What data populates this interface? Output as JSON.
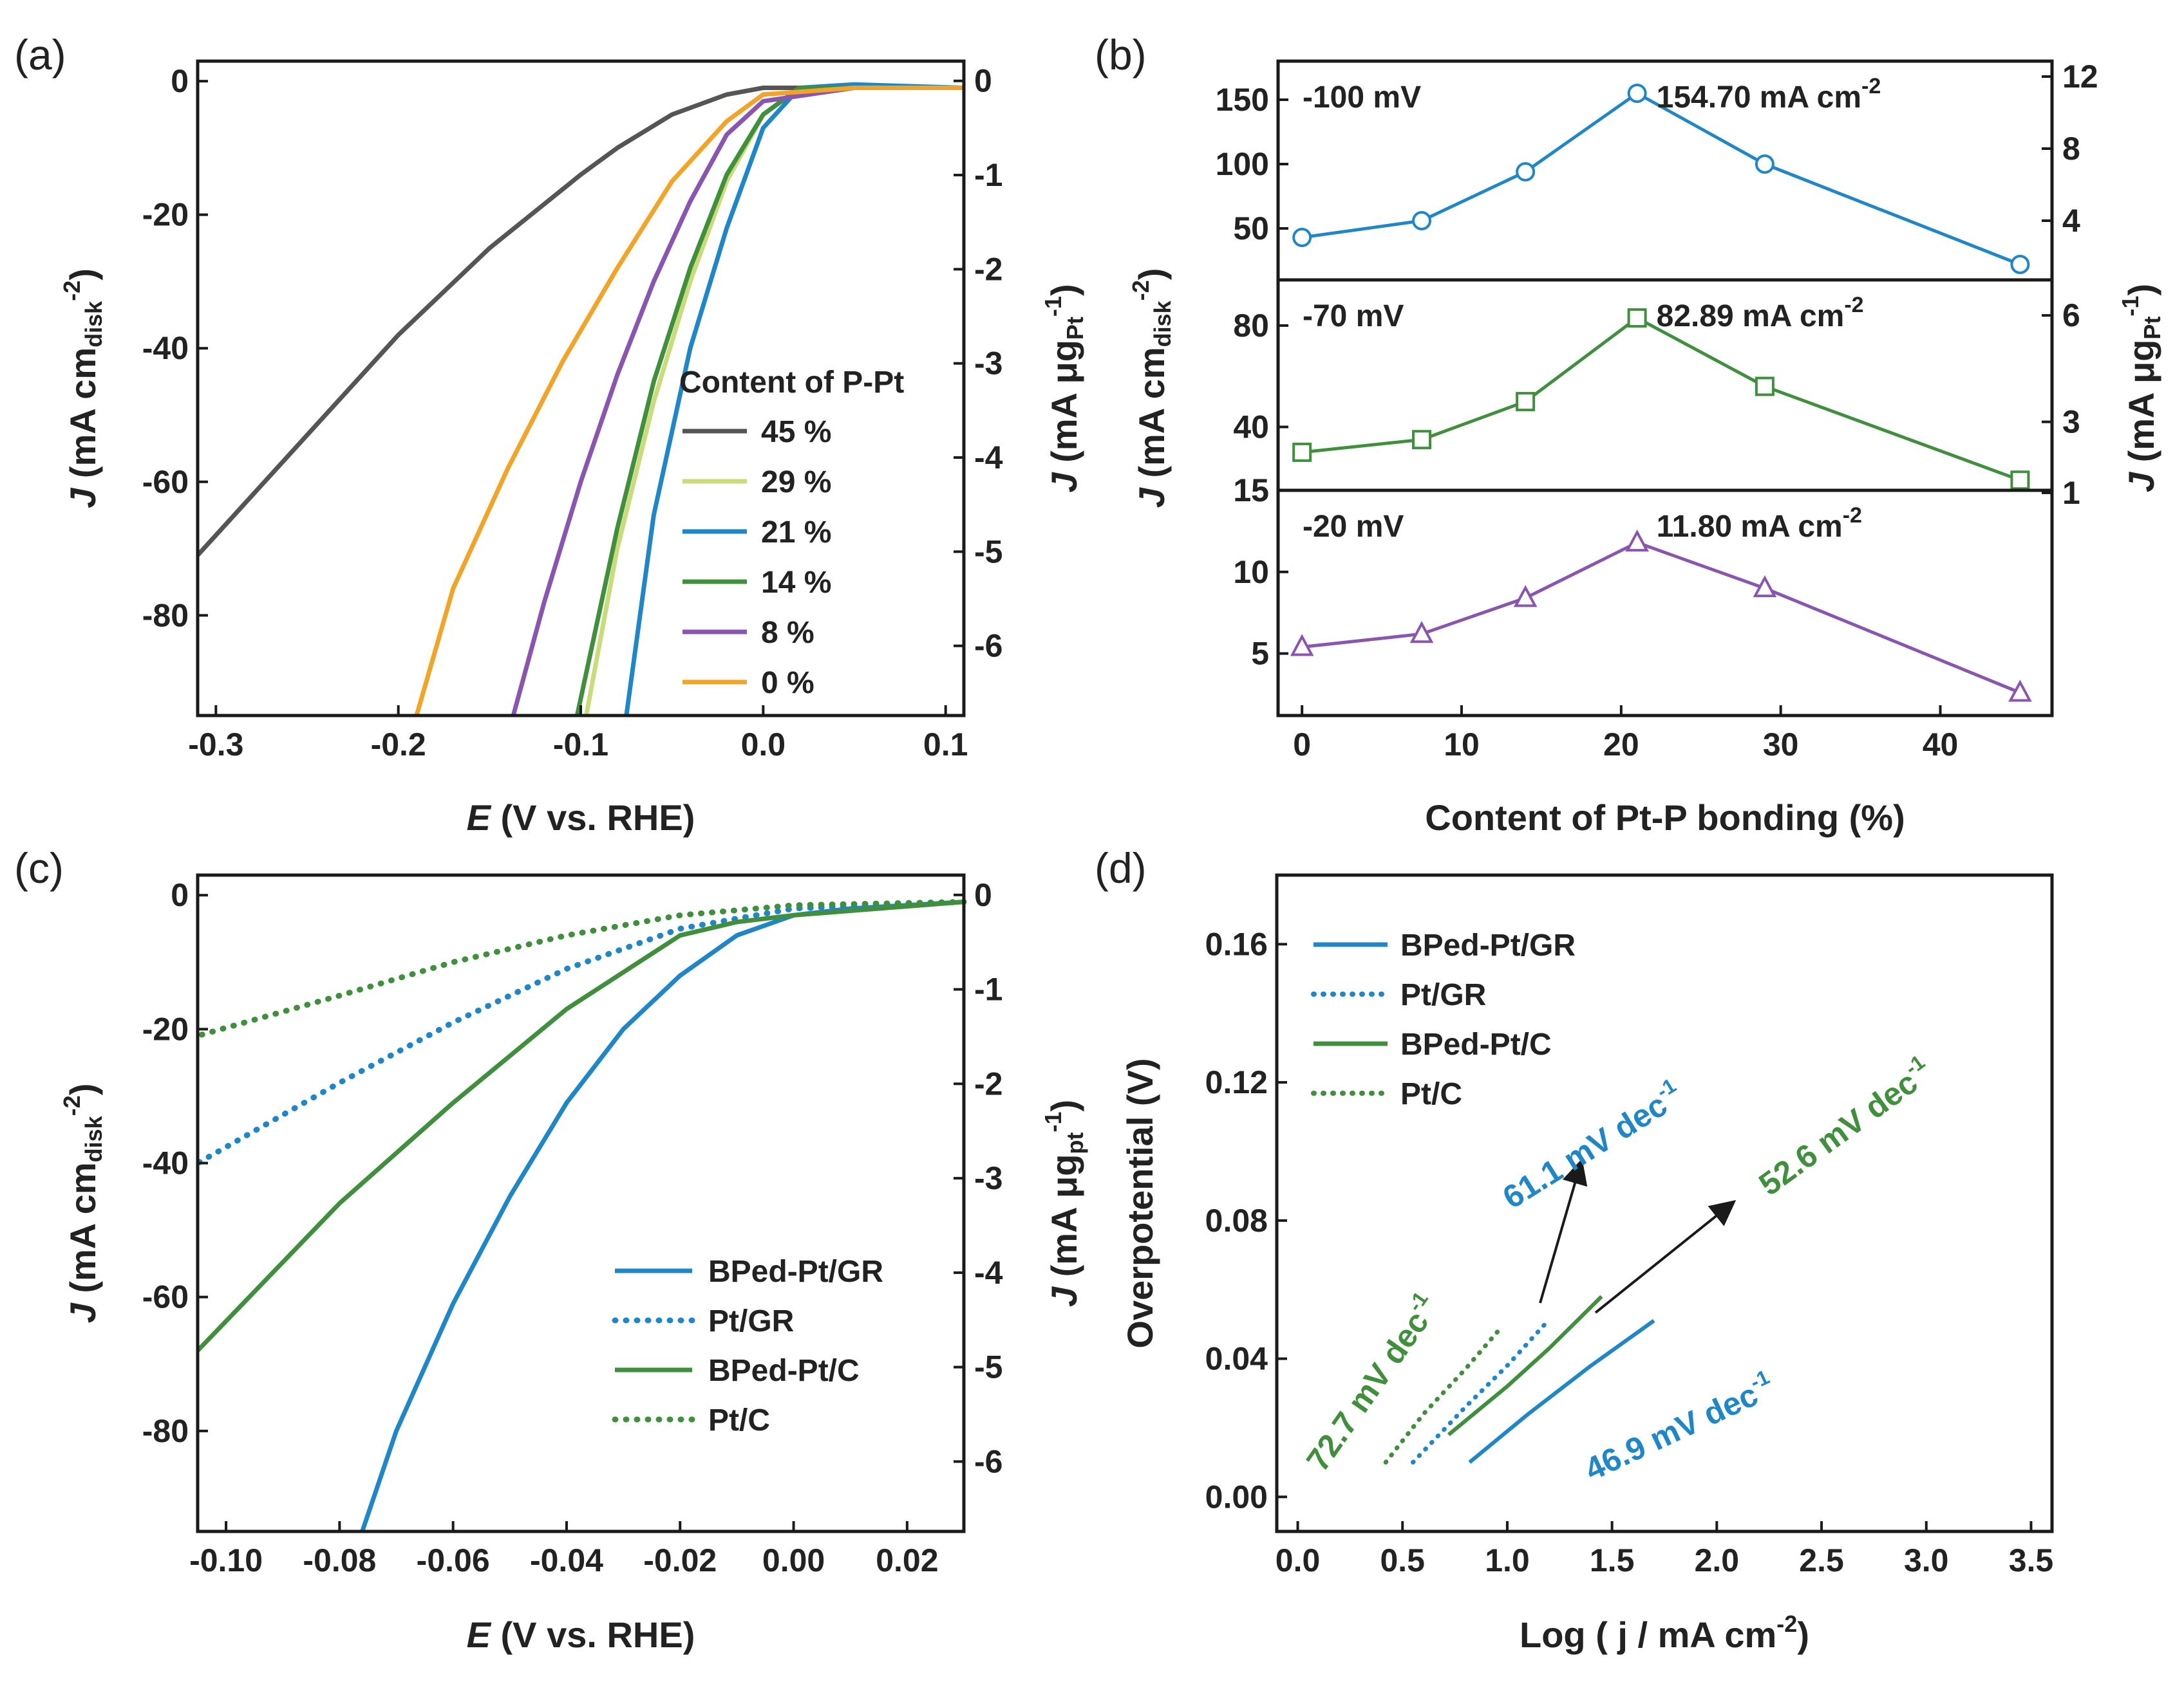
{
  "colors": {
    "c45": "#555555",
    "c29": "#c9dc7a",
    "c21": "#1f86c8",
    "c14": "#3f8f3c",
    "c8": "#8a55b0",
    "c0": "#f2a427",
    "blue": "#1f86c8",
    "green": "#3f8f3c",
    "purple": "#8a55b0",
    "dark": "#1a1a1a"
  },
  "chart_data": [
    {
      "panel": "(a)",
      "type": "line",
      "xlabel_italic": "E",
      "xlabel_rest": " (V vs. RHE)",
      "ylabel": "J (mA cm",
      "ylabel_sub": "disk",
      "ylabel_sup": "-2",
      "y2label": "J (mA μg",
      "y2label_sub": "Pt",
      "y2label_sup": "-1",
      "xlim": [
        -0.31,
        0.11
      ],
      "ylim": [
        -95,
        3
      ],
      "y2lim": [
        -6.74,
        0.21
      ],
      "xticks": [
        -0.3,
        -0.2,
        -0.1,
        0.0,
        0.1
      ],
      "xtick_labels": [
        "-0.3",
        "-0.2",
        "-0.1",
        "0.0",
        "0.1"
      ],
      "yticks": [
        0,
        -20,
        -40,
        -60,
        -80
      ],
      "ytick_labels": [
        "0",
        "-20",
        "-40",
        "-60",
        "-80"
      ],
      "y2ticks": [
        0,
        -1,
        -2,
        -3,
        -4,
        -5,
        -6
      ],
      "y2tick_labels": [
        "0",
        "-1",
        "-2",
        "-3",
        "-4",
        "-5",
        "-6"
      ],
      "legend_title": "Content of P-Pt",
      "series": [
        {
          "name": "45 %",
          "color_key": "c45",
          "x": [
            0.11,
            0.05,
            0.0,
            -0.02,
            -0.05,
            -0.08,
            -0.1,
            -0.15,
            -0.2,
            -0.25,
            -0.31
          ],
          "y": [
            -1,
            -1,
            -1,
            -2,
            -5,
            -10,
            -14,
            -25,
            -38,
            -53,
            -71
          ]
        },
        {
          "name": "29 %",
          "color_key": "c29",
          "x": [
            0.11,
            0.05,
            0.02,
            0.0,
            -0.02,
            -0.04,
            -0.06,
            -0.08,
            -0.097
          ],
          "y": [
            -1,
            -1,
            -1,
            -5,
            -15,
            -30,
            -48,
            -70,
            -95
          ]
        },
        {
          "name": "21 %",
          "color_key": "c21",
          "x": [
            0.11,
            0.05,
            0.02,
            0.0,
            -0.02,
            -0.04,
            -0.06,
            -0.075
          ],
          "y": [
            -1,
            -0.5,
            -1,
            -7,
            -22,
            -40,
            -65,
            -95
          ]
        },
        {
          "name": "14 %",
          "color_key": "c14",
          "x": [
            0.11,
            0.05,
            0.02,
            0.0,
            -0.02,
            -0.04,
            -0.06,
            -0.08,
            -0.102
          ],
          "y": [
            -1,
            -1,
            -1,
            -5,
            -14,
            -28,
            -45,
            -67,
            -95
          ]
        },
        {
          "name": "8 %",
          "color_key": "c8",
          "x": [
            0.11,
            0.05,
            0.0,
            -0.02,
            -0.04,
            -0.06,
            -0.08,
            -0.1,
            -0.12,
            -0.137
          ],
          "y": [
            -1,
            -1,
            -3,
            -8,
            -18,
            -30,
            -44,
            -60,
            -78,
            -95
          ]
        },
        {
          "name": "0 %",
          "color_key": "c0",
          "x": [
            0.11,
            0.05,
            0.0,
            -0.02,
            -0.05,
            -0.08,
            -0.11,
            -0.14,
            -0.17,
            -0.19
          ],
          "y": [
            -1,
            -1,
            -2,
            -6,
            -15,
            -28,
            -42,
            -58,
            -76,
            -95
          ]
        }
      ]
    },
    {
      "panel": "(b)",
      "type": "line",
      "xlabel": "Content of Pt-P bonding (%)",
      "ylabel": "J (mA cm",
      "ylabel_sub": "disk",
      "ylabel_sup": "-2",
      "y2label": "J (mA μg",
      "y2label_sub": "Pt",
      "y2label_sup": "-1",
      "xlim": [
        -1.5,
        47
      ],
      "xticks": [
        0,
        10,
        20,
        30,
        40
      ],
      "xtick_labels": [
        "0",
        "10",
        "20",
        "30",
        "40"
      ],
      "x": [
        0,
        7.5,
        14,
        21,
        29,
        45
      ],
      "subplots": [
        {
          "label": "-100 mV",
          "annotation": "154.70 mA cm",
          "annotation_sup": "-2",
          "marker": "circle",
          "color_key": "blue",
          "annotate_index": 3,
          "values": [
            43,
            56,
            94,
            155,
            100,
            22
          ],
          "ylim": [
            10,
            180
          ],
          "yticks": [
            50,
            100,
            150
          ],
          "ytick_labels": [
            "50",
            "100",
            "150"
          ],
          "y2lim": [
            0.714,
            12.857
          ],
          "y2ticks": [
            4,
            8,
            12
          ],
          "y2tick_labels": [
            "4",
            "8",
            "12"
          ]
        },
        {
          "label": "-70 mV",
          "annotation": "82.89 mA cm",
          "annotation_sup": "-2",
          "marker": "square",
          "color_key": "green",
          "annotate_index": 3,
          "values": [
            30,
            35,
            50,
            83,
            56,
            19
          ],
          "ylim": [
            15,
            98
          ],
          "yticks": [
            15,
            40,
            80
          ],
          "ytick_labels": [
            "15",
            "40",
            "80"
          ],
          "y2lim": [
            1.071,
            7.0
          ],
          "y2ticks": [
            1,
            3,
            6
          ],
          "y2tick_labels": [
            "1",
            "3",
            "6"
          ]
        },
        {
          "label": "-20 mV",
          "annotation": "11.80 mA cm",
          "annotation_sup": "-2",
          "marker": "triangle",
          "color_key": "purple",
          "annotate_index": 3,
          "values": [
            5.4,
            6.2,
            8.4,
            11.8,
            9.0,
            2.6
          ],
          "ylim": [
            1.2,
            15
          ],
          "yticks": [
            5,
            10,
            15
          ],
          "ytick_labels": [
            "5",
            "10",
            "15"
          ]
        }
      ]
    },
    {
      "panel": "(c)",
      "type": "line",
      "xlabel_italic": "E",
      "xlabel_rest": " (V vs. RHE)",
      "ylabel": "J (mA cm",
      "ylabel_sub": "disk",
      "ylabel_sup": "-2",
      "y2label": "J (mA μg",
      "y2label_sub": "pt",
      "y2label_sup": "-1",
      "xlim": [
        -0.105,
        0.03
      ],
      "ylim": [
        -95,
        3
      ],
      "y2lim": [
        -6.74,
        0.21
      ],
      "xticks": [
        -0.1,
        -0.08,
        -0.06,
        -0.04,
        -0.02,
        0.0,
        0.02
      ],
      "xtick_labels": [
        "-0.10",
        "-0.08",
        "-0.06",
        "-0.04",
        "-0.02",
        "0.00",
        "0.02"
      ],
      "yticks": [
        0,
        -20,
        -40,
        -60,
        -80
      ],
      "ytick_labels": [
        "0",
        "-20",
        "-40",
        "-60",
        "-80"
      ],
      "y2ticks": [
        0,
        -1,
        -2,
        -3,
        -4,
        -5,
        -6
      ],
      "y2tick_labels": [
        "0",
        "-1",
        "-2",
        "-3",
        "-4",
        "-5",
        "-6"
      ],
      "series": [
        {
          "name": "BPed-Pt/GR",
          "color_key": "blue",
          "dotted": false,
          "x": [
            0.03,
            0.01,
            0.0,
            -0.01,
            -0.02,
            -0.03,
            -0.04,
            -0.05,
            -0.06,
            -0.07,
            -0.076
          ],
          "y": [
            -1,
            -2,
            -3,
            -6,
            -12,
            -20,
            -31,
            -45,
            -61,
            -80,
            -95
          ]
        },
        {
          "name": "Pt/GR",
          "color_key": "blue",
          "dotted": true,
          "x": [
            0.03,
            0.0,
            -0.02,
            -0.04,
            -0.06,
            -0.08,
            -0.105
          ],
          "y": [
            -1,
            -2,
            -5,
            -11,
            -19,
            -28,
            -40
          ]
        },
        {
          "name": "BPed-Pt/C",
          "color_key": "green",
          "dotted": false,
          "x": [
            0.03,
            0.0,
            -0.01,
            -0.02,
            -0.04,
            -0.06,
            -0.08,
            -0.105
          ],
          "y": [
            -1,
            -3,
            -4,
            -6,
            -17,
            -31,
            -46,
            -68
          ]
        },
        {
          "name": "Pt/C",
          "color_key": "green",
          "dotted": true,
          "x": [
            0.03,
            0.0,
            -0.02,
            -0.04,
            -0.06,
            -0.08,
            -0.105
          ],
          "y": [
            -1,
            -1.5,
            -3,
            -6,
            -10,
            -15,
            -21
          ]
        }
      ]
    },
    {
      "panel": "(d)",
      "type": "line",
      "xlabel": "Log ( j / mA cm",
      "xlabel_sup": "-2",
      "xlabel_end": ")",
      "ylabel": "Overpotential (V)",
      "xlim": [
        -0.1,
        3.6
      ],
      "ylim": [
        -0.01,
        0.18
      ],
      "xticks": [
        0.0,
        0.5,
        1.0,
        1.5,
        2.0,
        2.5,
        3.0,
        3.5
      ],
      "xtick_labels": [
        "0.0",
        "0.5",
        "1.0",
        "1.5",
        "2.0",
        "2.5",
        "3.0",
        "3.5"
      ],
      "yticks": [
        0.0,
        0.04,
        0.08,
        0.12,
        0.16
      ],
      "ytick_labels": [
        "0.00",
        "0.04",
        "0.08",
        "0.12",
        "0.16"
      ],
      "series": [
        {
          "name": "BPed-Pt/GR",
          "color_key": "blue",
          "dotted": false,
          "x": [
            0.82,
            1.1,
            1.4,
            1.7
          ],
          "y": [
            0.01,
            0.024,
            0.038,
            0.051
          ]
        },
        {
          "name": "Pt/GR",
          "color_key": "blue",
          "dotted": true,
          "x": [
            0.55,
            0.8,
            1.0,
            1.18
          ],
          "y": [
            0.01,
            0.026,
            0.038,
            0.05
          ]
        },
        {
          "name": "BPed-Pt/C",
          "color_key": "green",
          "dotted": false,
          "x": [
            0.72,
            1.0,
            1.2,
            1.45
          ],
          "y": [
            0.018,
            0.032,
            0.043,
            0.058
          ]
        },
        {
          "name": "Pt/C",
          "color_key": "green",
          "dotted": true,
          "x": [
            0.42,
            0.6,
            0.8,
            0.97
          ],
          "y": [
            0.01,
            0.024,
            0.037,
            0.049
          ]
        }
      ],
      "annotations": [
        {
          "text": "61.1 mV dec",
          "sup": "-1",
          "color_key": "blue"
        },
        {
          "text": "52.6 mV dec",
          "sup": "-1",
          "color_key": "green"
        },
        {
          "text": "72.7 mV dec",
          "sup": "-1",
          "color_key": "green"
        },
        {
          "text": "46.9 mV dec",
          "sup": "-1",
          "color_key": "blue"
        }
      ]
    }
  ]
}
